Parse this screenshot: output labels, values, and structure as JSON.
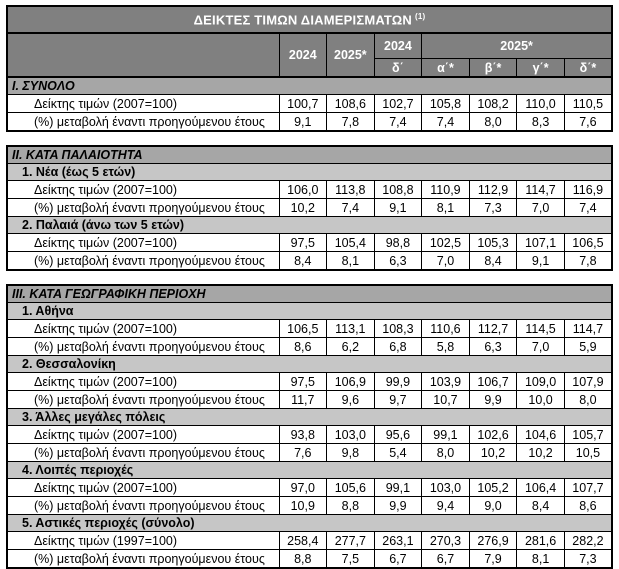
{
  "title": "ΔΕΙΚΤΕΣ ΤΙΜΩΝ ΔΙΑΜΕΡΙΣΜΑΤΩΝ",
  "title_footnote": "(1)",
  "columns": {
    "annual": [
      "2024",
      "2025*"
    ],
    "q2024_label": "2024",
    "q2024_sub": "δ΄",
    "q2025_label": "2025*",
    "q2025_subs": [
      "α΄*",
      "β΄*",
      "γ΄*",
      "δ΄*"
    ]
  },
  "blocks": [
    {
      "section": "I. ΣΥΝΟΛΟ",
      "groups": [
        {
          "sub": null,
          "rows": [
            {
              "label": "Δείκτης τιμών (2007=100)",
              "values": [
                "100,7",
                "108,6",
                "102,7",
                "105,8",
                "108,2",
                "110,0",
                "110,5"
              ]
            },
            {
              "label": "(%) μεταβολή έναντι προηγούμενου έτους",
              "values": [
                "9,1",
                "7,8",
                "7,4",
                "7,4",
                "8,0",
                "8,3",
                "7,6"
              ]
            }
          ]
        }
      ]
    },
    {
      "section": "II. ΚΑΤΑ ΠΑΛΑΙΟΤΗΤΑ",
      "groups": [
        {
          "sub": "1.  Νέα (έως 5 ετών)",
          "rows": [
            {
              "label": "Δείκτης τιμών (2007=100)",
              "values": [
                "106,0",
                "113,8",
                "108,8",
                "110,9",
                "112,9",
                "114,7",
                "116,9"
              ]
            },
            {
              "label": "(%) μεταβολή έναντι προηγούμενου έτους",
              "values": [
                "10,2",
                "7,4",
                "9,1",
                "8,1",
                "7,3",
                "7,0",
                "7,4"
              ]
            }
          ]
        },
        {
          "sub": "2. Παλαιά (άνω των 5 ετών)",
          "rows": [
            {
              "label": "Δείκτης τιμών (2007=100)",
              "values": [
                "97,5",
                "105,4",
                "98,8",
                "102,5",
                "105,3",
                "107,1",
                "106,5"
              ]
            },
            {
              "label": "(%) μεταβολή έναντι προηγούμενου έτους",
              "values": [
                "8,4",
                "8,1",
                "6,3",
                "7,0",
                "8,4",
                "9,1",
                "7,8"
              ]
            }
          ]
        }
      ]
    },
    {
      "section": "III. ΚΑΤΑ ΓΕΩΓΡΑΦΙΚΗ ΠΕΡΙΟΧΗ",
      "groups": [
        {
          "sub": "1.  Αθήνα",
          "rows": [
            {
              "label": "Δείκτης τιμών (2007=100)",
              "values": [
                "106,5",
                "113,1",
                "108,3",
                "110,6",
                "112,7",
                "114,5",
                "114,7"
              ]
            },
            {
              "label": "(%) μεταβολή έναντι προηγούμενου έτους",
              "values": [
                "8,6",
                "6,2",
                "6,8",
                "5,8",
                "6,3",
                "7,0",
                "5,9"
              ]
            }
          ]
        },
        {
          "sub": "2.  Θεσσαλονίκη",
          "rows": [
            {
              "label": "Δείκτης τιμών (2007=100)",
              "values": [
                "97,5",
                "106,9",
                "99,9",
                "103,9",
                "106,7",
                "109,0",
                "107,9"
              ]
            },
            {
              "label": "(%) μεταβολή έναντι προηγούμενου έτους",
              "values": [
                "11,7",
                "9,6",
                "9,7",
                "10,7",
                "9,9",
                "10,0",
                "8,0"
              ]
            }
          ]
        },
        {
          "sub": "3.  Άλλες μεγάλες πόλεις",
          "rows": [
            {
              "label": "Δείκτης τιμών (2007=100)",
              "values": [
                "93,8",
                "103,0",
                "95,6",
                "99,1",
                "102,6",
                "104,6",
                "105,7"
              ]
            },
            {
              "label": "(%) μεταβολή έναντι προηγούμενου έτους",
              "values": [
                "7,6",
                "9,8",
                "5,4",
                "8,0",
                "10,2",
                "10,2",
                "10,5"
              ]
            }
          ]
        },
        {
          "sub": "4.  Λοιπές περιοχές",
          "rows": [
            {
              "label": "Δείκτης τιμών (2007=100)",
              "values": [
                "97,0",
                "105,6",
                "99,1",
                "103,0",
                "105,2",
                "106,4",
                "107,7"
              ]
            },
            {
              "label": "(%) μεταβολή έναντι προηγούμενου έτους",
              "values": [
                "10,9",
                "8,8",
                "9,9",
                "9,4",
                "9,0",
                "8,4",
                "8,6"
              ]
            }
          ]
        },
        {
          "sub": "5.  Αστικές περιοχές (σύνολο)",
          "rows": [
            {
              "label": "Δείκτης τιμών (1997=100)",
              "values": [
                "258,4",
                "277,7",
                "263,1",
                "270,3",
                "276,9",
                "281,6",
                "282,2"
              ]
            },
            {
              "label": "(%) μεταβολή έναντι προηγούμενου έτους",
              "values": [
                "8,8",
                "7,5",
                "6,7",
                "6,7",
                "7,9",
                "8,1",
                "7,3"
              ]
            }
          ]
        }
      ]
    }
  ],
  "colors": {
    "header_bg": "#808080",
    "section_bg": "#a6a6a6",
    "subsection_bg": "#c6c6c6",
    "header_text": "#ffffff",
    "body_text": "#000000",
    "border": "#000000"
  }
}
